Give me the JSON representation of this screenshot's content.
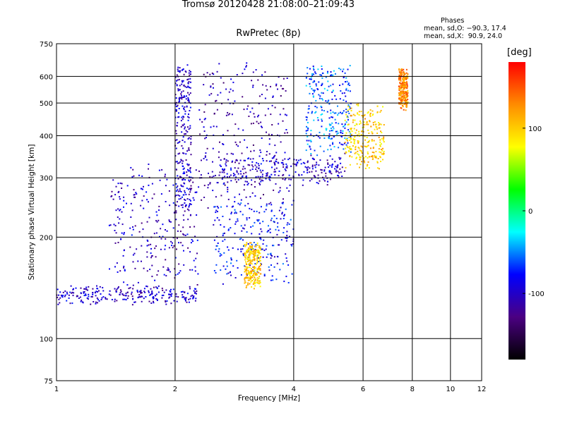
{
  "chart_data": {
    "type": "scatter",
    "title": "Tromsø 20120428 21:08:00–21:09:43",
    "subtitle": "RwPretec (8p)",
    "xlabel": "Frequency [MHz]",
    "ylabel": "Stationary phase Virtual Height [km]",
    "xscale": "log",
    "yscale": "log",
    "xlim": [
      1,
      12
    ],
    "ylim": [
      75,
      750
    ],
    "x_ticks": [
      1,
      2,
      4,
      6,
      8,
      10,
      12
    ],
    "y_ticks": [
      75,
      100,
      200,
      300,
      400,
      500,
      600,
      750
    ],
    "grid": true,
    "colorbar": {
      "label": "[deg]",
      "range": [
        -180,
        180
      ],
      "ticks": [
        100,
        0,
        -100
      ],
      "colors": [
        "#000000",
        "#4b0082",
        "#0000ff",
        "#00ffff",
        "#00ff00",
        "#ffff00",
        "#ff8c00",
        "#ff0000"
      ]
    },
    "stats": {
      "heading": "Phases",
      "o_mode": "mean, sd,O: −90.3, 17.4",
      "x_mode": "mean, sd,X:  90.9, 24.0"
    },
    "traces": [
      {
        "name": "",
        "f_start": 1.0,
        "f_end": 2.3,
        "h_start": 130,
        "h_end": 140,
        "phase": -100
      },
      {
        "name": "",
        "f_start": 1.35,
        "f_end": 2.3,
        "h_start": 150,
        "h_end": 320,
        "phase": -100
      },
      {
        "name": "",
        "f_start": 2.0,
        "f_end": 2.2,
        "h_start": 230,
        "h_end": 640,
        "phase": -100
      },
      {
        "name": "",
        "f_start": 2.3,
        "f_end": 3.9,
        "h_start": 250,
        "h_end": 640,
        "phase": -110
      },
      {
        "name": "",
        "f_start": 2.6,
        "f_end": 5.4,
        "h_start": 290,
        "h_end": 350,
        "phase": -100
      },
      {
        "name": "",
        "f_start": 4.3,
        "f_end": 5.6,
        "h_start": 360,
        "h_end": 630,
        "phase": -60
      },
      {
        "name": "",
        "f_start": 5.4,
        "f_end": 6.8,
        "h_start": 330,
        "h_end": 480,
        "phase": 100
      },
      {
        "name": "",
        "f_start": 2.5,
        "f_end": 4.0,
        "h_start": 150,
        "h_end": 250,
        "phase": -80
      },
      {
        "name": "",
        "f_start": 3.0,
        "f_end": 3.3,
        "h_start": 145,
        "h_end": 190,
        "phase": 100
      },
      {
        "name": "",
        "f_start": 7.4,
        "f_end": 7.8,
        "h_start": 490,
        "h_end": 620,
        "phase": 130
      }
    ]
  }
}
